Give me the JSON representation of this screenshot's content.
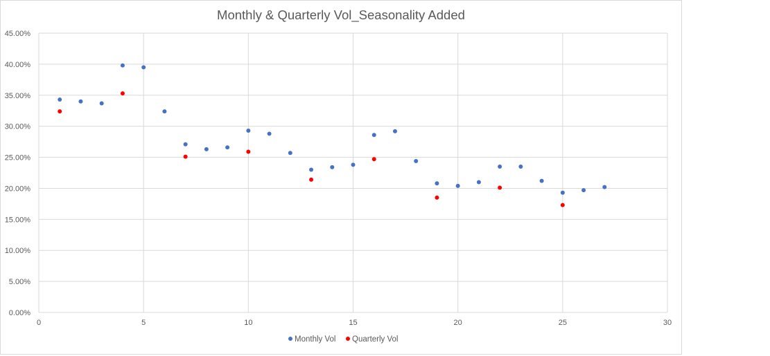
{
  "chart_data": {
    "type": "scatter",
    "title": "Monthly & Quarterly Vol_Seasonality  Added",
    "xlabel": "",
    "ylabel": "",
    "xlim": [
      0,
      30
    ],
    "ylim": [
      0,
      0.45
    ],
    "x_ticks": [
      0,
      5,
      10,
      15,
      20,
      25,
      30
    ],
    "y_ticks": [
      0,
      0.05,
      0.1,
      0.15,
      0.2,
      0.25,
      0.3,
      0.35,
      0.4,
      0.45
    ],
    "x_tick_labels": [
      "0",
      "5",
      "10",
      "15",
      "20",
      "25",
      "30"
    ],
    "y_tick_labels": [
      "0.00%",
      "5.00%",
      "10.00%",
      "15.00%",
      "20.00%",
      "25.00%",
      "30.00%",
      "35.00%",
      "40.00%",
      "45.00%"
    ],
    "grid": true,
    "legend_position": "bottom",
    "series": [
      {
        "name": "Monthly Vol",
        "color": "#4472c4",
        "x": [
          1,
          2,
          3,
          4,
          5,
          6,
          7,
          8,
          9,
          10,
          11,
          12,
          13,
          14,
          15,
          16,
          17,
          18,
          19,
          20,
          21,
          22,
          23,
          24,
          25,
          26,
          27
        ],
        "y": [
          0.343,
          0.34,
          0.337,
          0.398,
          0.395,
          0.324,
          0.271,
          0.263,
          0.266,
          0.293,
          0.288,
          0.257,
          0.23,
          0.234,
          0.238,
          0.286,
          0.292,
          0.244,
          0.208,
          0.204,
          0.21,
          0.235,
          0.235,
          0.212,
          0.193,
          0.197,
          0.202
        ]
      },
      {
        "name": "Quarterly Vol",
        "color": "#ff0000",
        "x": [
          1,
          4,
          7,
          10,
          13,
          16,
          19,
          22,
          25
        ],
        "y": [
          0.324,
          0.353,
          0.251,
          0.259,
          0.214,
          0.247,
          0.185,
          0.201,
          0.173
        ]
      }
    ]
  }
}
